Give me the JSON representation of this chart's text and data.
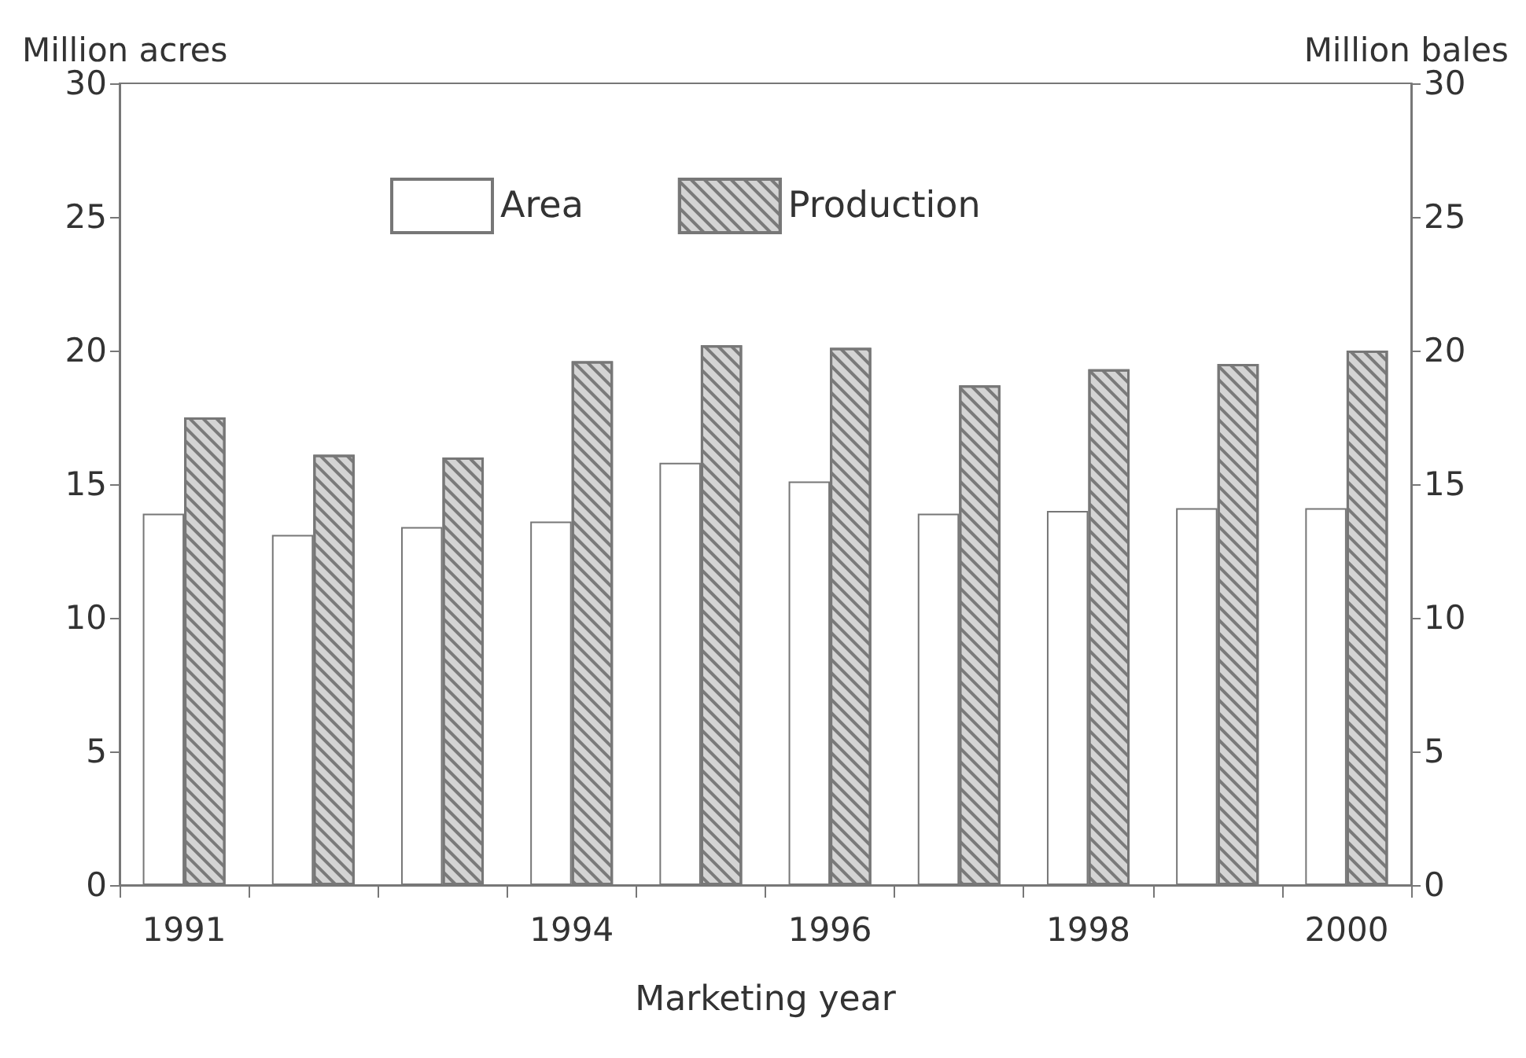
{
  "chart_data": {
    "type": "bar",
    "categories": [
      "1991",
      null,
      null,
      "1994",
      null,
      "1996",
      null,
      "1998",
      null,
      "2000"
    ],
    "series": [
      {
        "name": "Area",
        "color": "#ffffff",
        "values": [
          13.9,
          13.1,
          13.4,
          13.6,
          15.8,
          15.1,
          13.9,
          14.0,
          14.1,
          14.1
        ]
      },
      {
        "name": "Production",
        "color": "#d4d4d4",
        "axis": "y2",
        "values": [
          17.5,
          16.1,
          16.0,
          19.6,
          20.2,
          20.1,
          18.7,
          19.3,
          19.5,
          20.0
        ]
      }
    ],
    "xlabel": "Marketing year",
    "ylabel": "Million acres",
    "y2label": "Million bales",
    "ylim": [
      0,
      30
    ],
    "yticks": [
      0,
      5,
      10,
      15,
      20,
      25,
      30
    ],
    "y2lim": [
      0,
      30
    ],
    "y2ticks": [
      0,
      5,
      10,
      15,
      20,
      25,
      30
    ],
    "legend": "top",
    "grid": false
  }
}
